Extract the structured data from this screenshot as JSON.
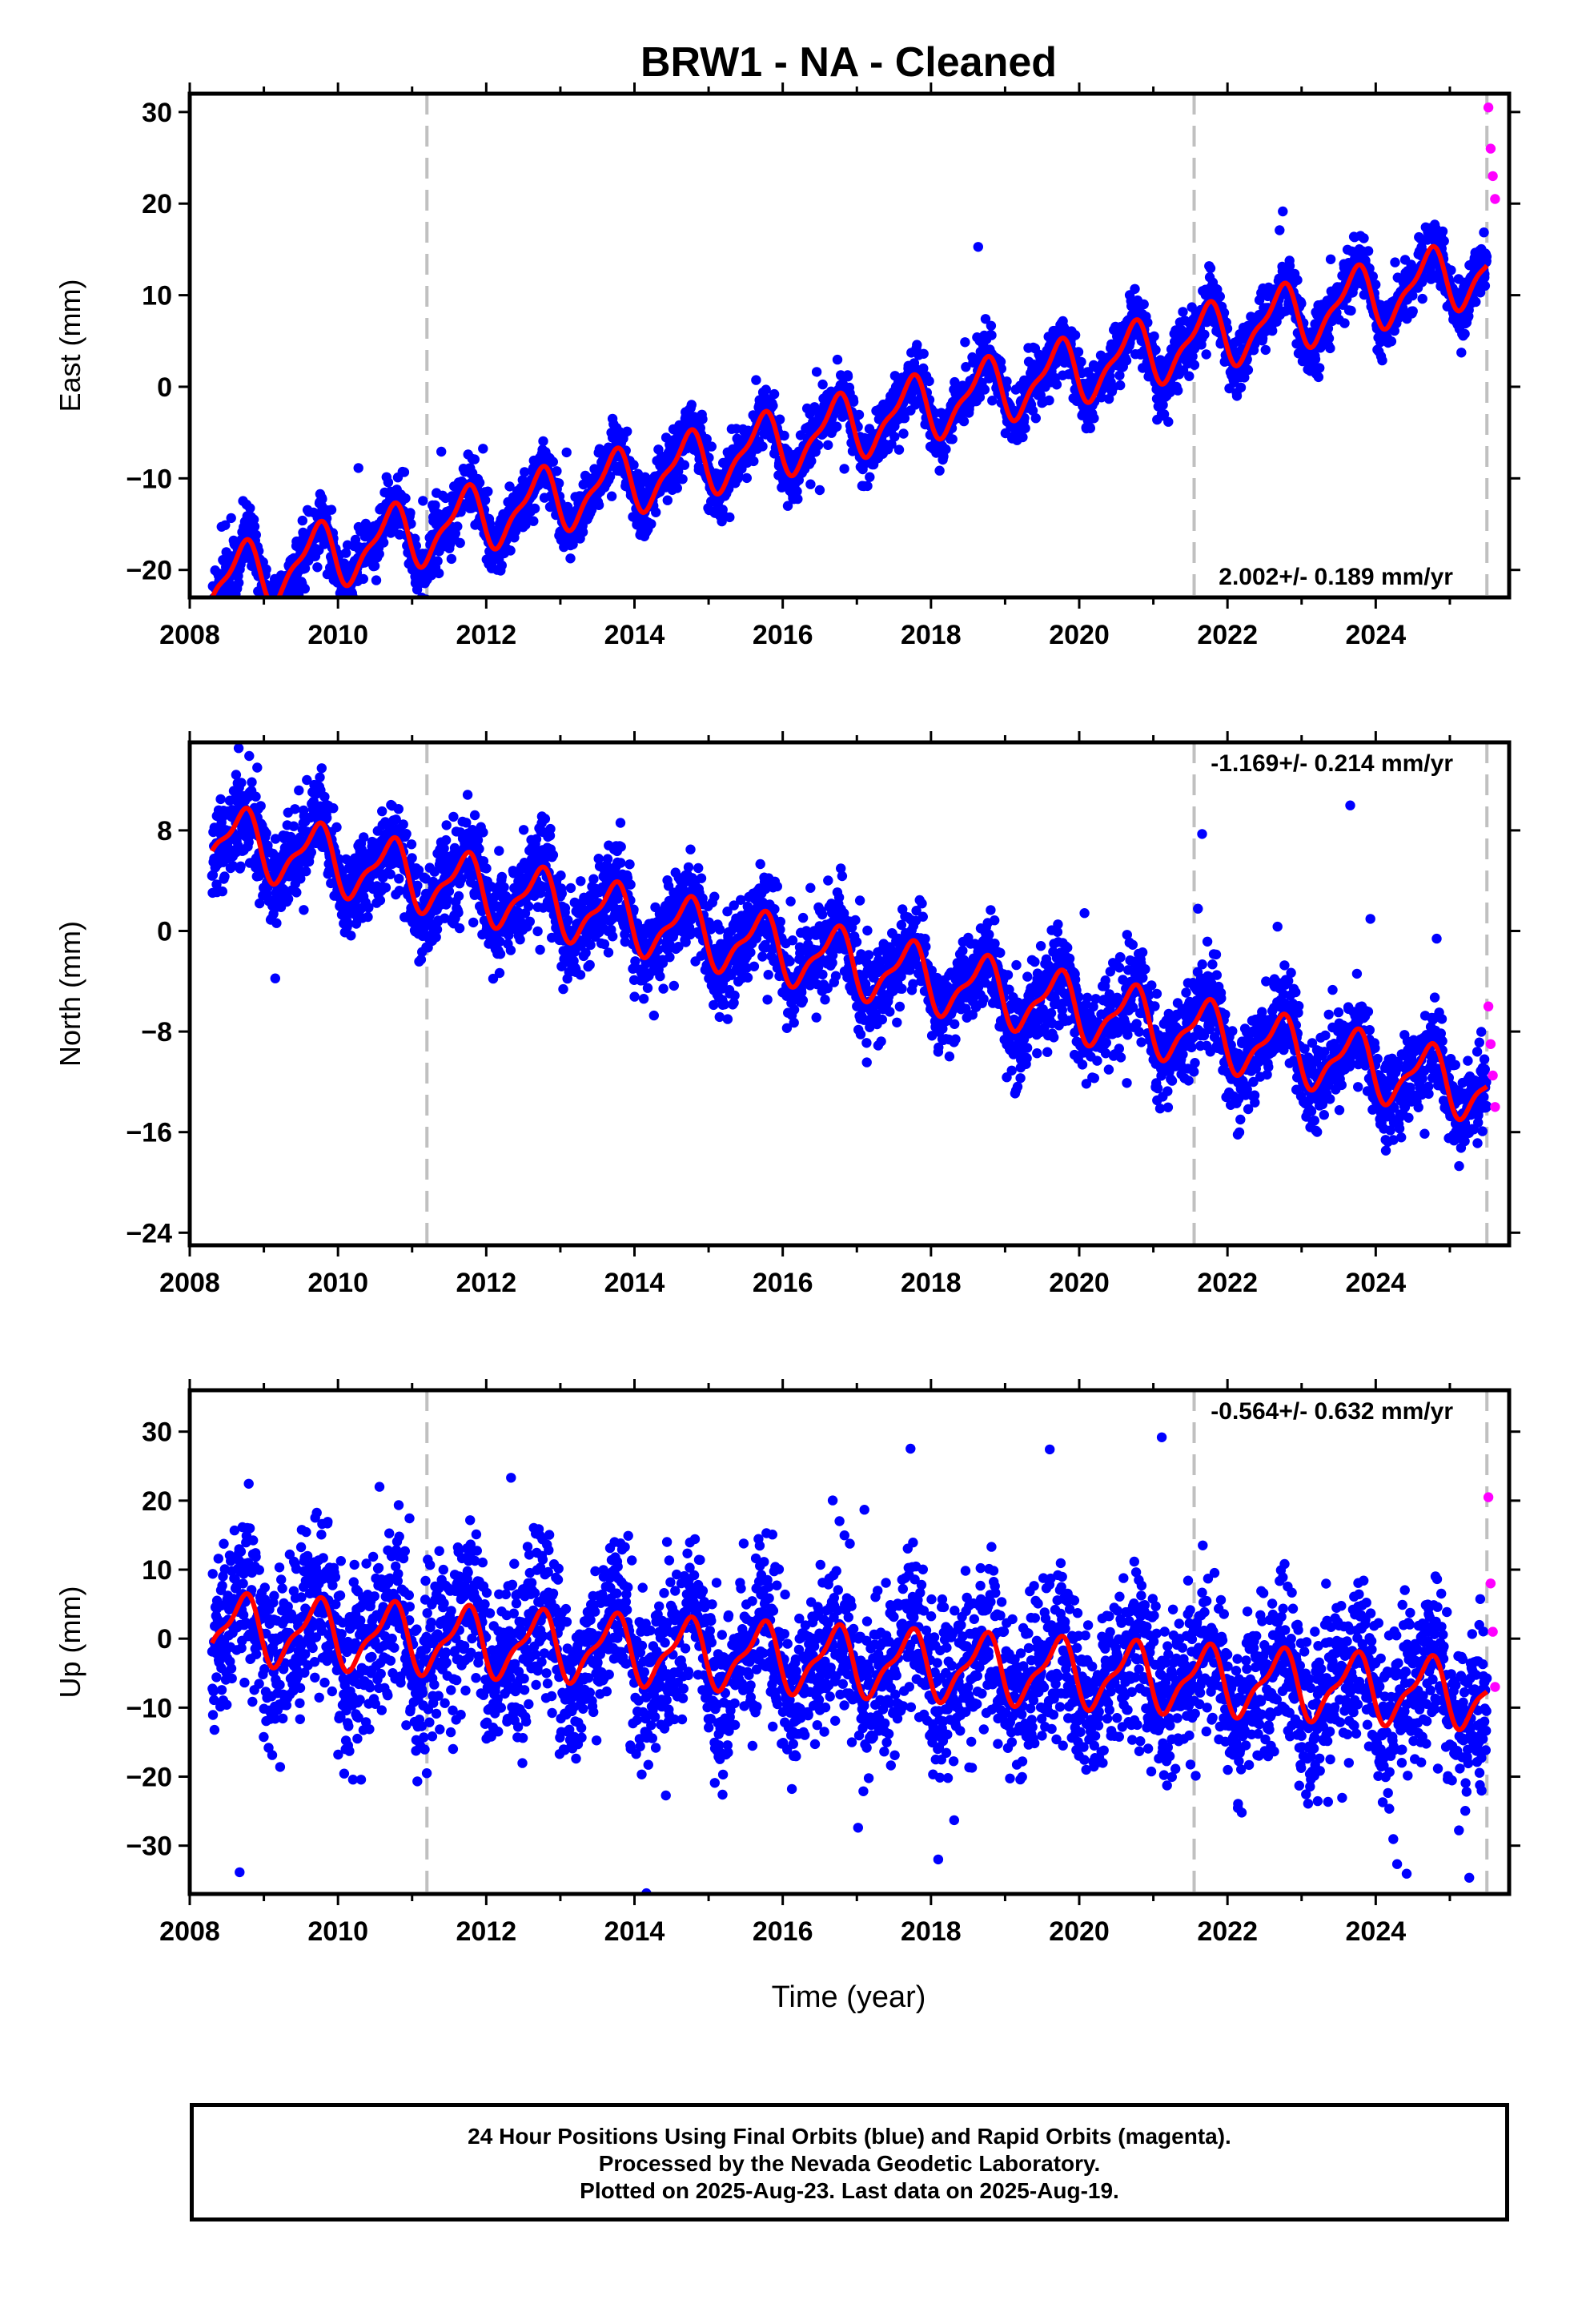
{
  "title": "BRW1  - NA - Cleaned",
  "colors": {
    "final_orbits": "#0000ff",
    "rapid_orbits": "#ff00ff",
    "model": "#ff0000",
    "event_lines": "#c0c0c0",
    "frame": "#000000"
  },
  "xaxis": {
    "label": "Time (year)",
    "range": [
      2008.0,
      2025.8
    ],
    "ticks": [
      2008,
      2010,
      2012,
      2014,
      2016,
      2018,
      2020,
      2022,
      2024
    ]
  },
  "event_lines": [
    2011.2,
    2021.55,
    2025.5
  ],
  "footer": {
    "line1": "24 Hour Positions Using Final Orbits (blue) and Rapid Orbits (magenta).",
    "line2": "Processed by the Nevada Geodetic Laboratory.",
    "line3": "Plotted on 2025-Aug-23. Last data on 2025-Aug-19."
  },
  "chart_data": [
    {
      "type": "scatter",
      "ylabel": "East (mm)",
      "ylim": [
        -23,
        32
      ],
      "yticks": [
        -20,
        -10,
        0,
        10,
        20,
        30
      ],
      "rate": "2.002+/- 0.189 mm/yr",
      "rate_position": "bottom-right",
      "rate_mm_yr": 2.0,
      "intercept_mm": -21.5,
      "seasonal_amplitude_mm": 3.3,
      "scatter_mm": 1.6,
      "data_start": 2008.3,
      "data_end": 2025.5,
      "rapid_x": [
        2025.52,
        2025.55,
        2025.58,
        2025.61
      ],
      "rapid_y": [
        30.5,
        26,
        23,
        20.5
      ],
      "series": [
        {
          "name": "Final Orbits (blue)",
          "points_per_year": 220
        },
        {
          "name": "Rapid Orbits (magenta)"
        },
        {
          "name": "Model fit (red)"
        }
      ]
    },
    {
      "type": "scatter",
      "ylabel": "North (mm)",
      "ylim": [
        -25,
        15
      ],
      "yticks": [
        -24,
        -16,
        -8,
        0,
        8
      ],
      "rate": "-1.169+/- 0.214 mm/yr",
      "rate_position": "top-right",
      "rate_mm_yr": -1.17,
      "intercept_mm": 7.5,
      "seasonal_amplitude_mm": 2.4,
      "scatter_mm": 1.8,
      "data_start": 2008.3,
      "data_end": 2025.5,
      "rapid_x": [
        2025.52,
        2025.55,
        2025.58,
        2025.61
      ],
      "rapid_y": [
        -6,
        -9,
        -11.5,
        -14
      ],
      "series": [
        {
          "name": "Final Orbits (blue)",
          "points_per_year": 220
        },
        {
          "name": "Rapid Orbits (magenta)"
        },
        {
          "name": "Model fit (red)"
        }
      ]
    },
    {
      "type": "scatter",
      "ylabel": "Up (mm)",
      "ylim": [
        -37,
        36
      ],
      "yticks": [
        -30,
        -20,
        -10,
        0,
        10,
        20,
        30
      ],
      "rate": "-0.564+/- 0.632 mm/yr",
      "rate_position": "top-right",
      "rate_mm_yr": -0.56,
      "intercept_mm": 1.5,
      "seasonal_amplitude_mm": 4.5,
      "scatter_mm": 6.0,
      "data_start": 2008.3,
      "data_end": 2025.5,
      "rapid_x": [
        2025.52,
        2025.55,
        2025.58,
        2025.61
      ],
      "rapid_y": [
        20.5,
        8,
        1,
        -7
      ],
      "series": [
        {
          "name": "Final Orbits (blue)",
          "points_per_year": 220
        },
        {
          "name": "Rapid Orbits (magenta)"
        },
        {
          "name": "Model fit (red)"
        }
      ]
    }
  ]
}
